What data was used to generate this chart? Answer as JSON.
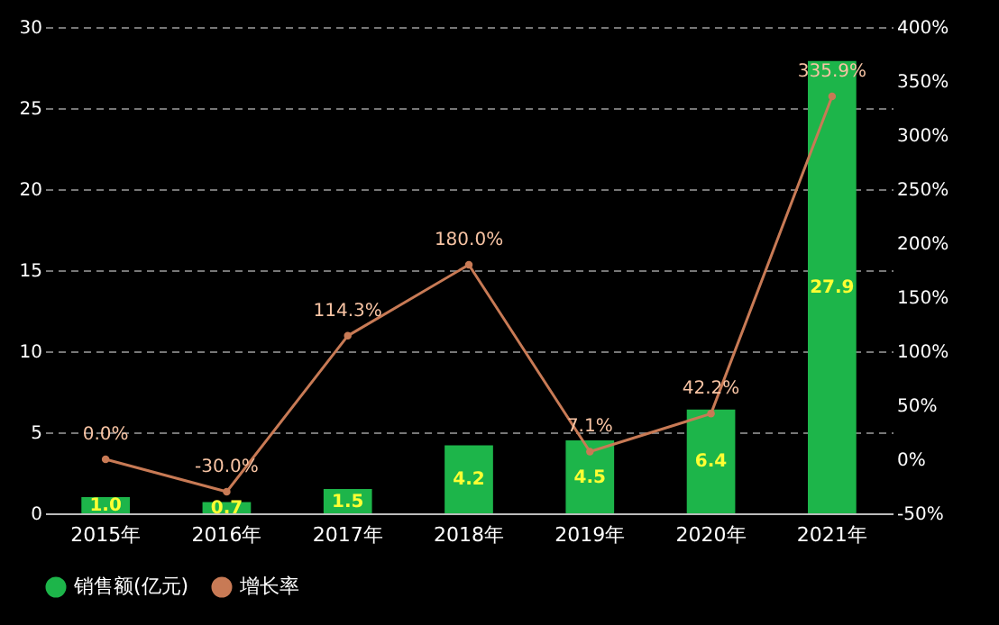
{
  "chart_data": {
    "type": "bar",
    "categories": [
      "2015年",
      "2016年",
      "2017年",
      "2018年",
      "2019年",
      "2020年",
      "2021年"
    ],
    "series": [
      {
        "name": "销售额(亿元)",
        "type": "bar",
        "color": "#1db54a",
        "values": [
          1.0,
          0.7,
          1.5,
          4.2,
          4.5,
          6.4,
          27.9
        ],
        "value_labels": [
          "1.0",
          "0.7",
          "1.5",
          "4.2",
          "4.5",
          "6.4",
          "27.9"
        ]
      },
      {
        "name": "增长率",
        "type": "line",
        "axis": "y2",
        "color": "#c87a55",
        "values": [
          0.0,
          -30.0,
          114.3,
          180.0,
          7.1,
          42.2,
          335.9
        ],
        "value_labels": [
          "0.0%",
          "-30.0%",
          "114.3%",
          "180.0%",
          "7.1%",
          "42.2%",
          "335.9%"
        ]
      }
    ],
    "ylim": [
      0,
      30
    ],
    "yticks": [
      0,
      5,
      10,
      15,
      20,
      25,
      30
    ],
    "y2lim": [
      -50,
      400
    ],
    "y2ticks": [
      {
        "value": -50,
        "label": "-50%"
      },
      {
        "value": 0,
        "label": "0%"
      },
      {
        "value": 50,
        "label": "50%"
      },
      {
        "value": 100,
        "label": "100%"
      },
      {
        "value": 150,
        "label": "150%"
      },
      {
        "value": 200,
        "label": "200%"
      },
      {
        "value": 250,
        "label": "250%"
      },
      {
        "value": 300,
        "label": "300%"
      },
      {
        "value": 350,
        "label": "350%"
      },
      {
        "value": 400,
        "label": "400%"
      }
    ],
    "grid": "y",
    "legend": "bottom",
    "marker": "circle"
  }
}
